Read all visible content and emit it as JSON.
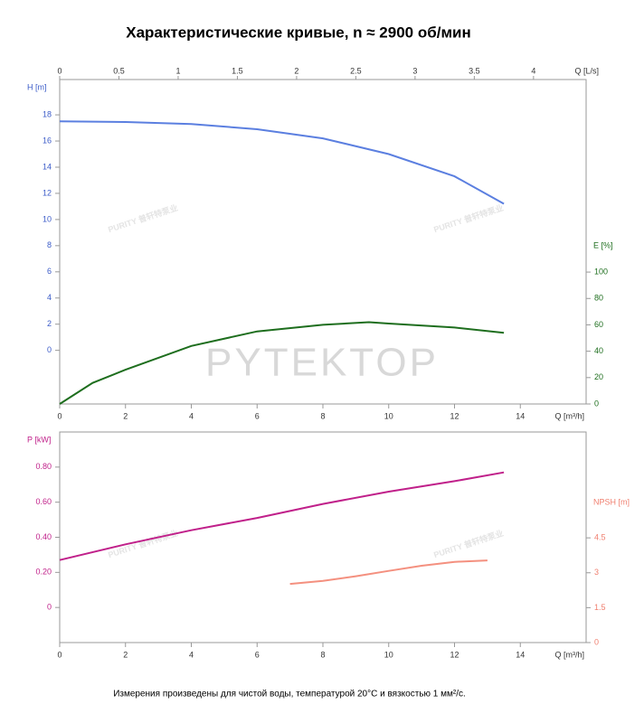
{
  "title": "Характеристические кривые, n ≈ 2900 об/мин",
  "note": "Измерения произведены для чистой воды, температурой 20°C и вязкостью 1 мм²/с.",
  "watermarks": [
    "PURITY 普轩特泵业",
    "PYTEKTOP"
  ],
  "chart_data": [
    {
      "type": "line",
      "xlabel": "Q [m³/h]",
      "x2label": "Q [L/s]",
      "ylabel": "H [m]",
      "y2label": "E [%]",
      "xlim": [
        0,
        16
      ],
      "xticks": [
        0,
        2,
        4,
        6,
        8,
        10,
        12,
        14
      ],
      "x2lim": [
        0,
        4.444
      ],
      "x2ticks": [
        0,
        0.5,
        1,
        1.5,
        2,
        2.5,
        3,
        3.5,
        4
      ],
      "ylim": [
        -4.1,
        20.7
      ],
      "yticks": [
        0,
        2,
        4,
        6,
        8,
        10,
        12,
        14,
        16,
        18
      ],
      "y2lim": [
        0,
        246
      ],
      "y2ticks": [
        0,
        20,
        40,
        60,
        80,
        100
      ],
      "series": [
        {
          "color": "#5b7fe0",
          "axis": "y",
          "x": [
            0,
            2,
            4,
            6,
            8,
            10,
            12,
            13.5
          ],
          "values": [
            17.5,
            17.45,
            17.3,
            16.9,
            16.2,
            15.0,
            13.3,
            11.2
          ]
        },
        {
          "color": "#1e6e1e",
          "axis": "y2",
          "x": [
            0,
            1,
            2,
            4,
            6,
            8,
            9.4,
            10,
            12,
            13.5
          ],
          "values": [
            0,
            16,
            26,
            44,
            55,
            60,
            62,
            61,
            58,
            54
          ]
        }
      ]
    },
    {
      "type": "line",
      "xlabel": "Q [m³/h]",
      "ylabel": "P [kW]",
      "y2label": "NPSH [m]",
      "xlim": [
        0,
        16
      ],
      "xticks": [
        0,
        2,
        4,
        6,
        8,
        10,
        12,
        14
      ],
      "ylim": [
        -0.2,
        1.0
      ],
      "yticks": [
        0,
        {
          "value": 0.2,
          "label": "0.20"
        },
        {
          "value": 0.4,
          "label": "0.40"
        },
        {
          "value": 0.6,
          "label": "0.60"
        },
        {
          "value": 0.8,
          "label": "0.80"
        }
      ],
      "y2lim": [
        0,
        9.05
      ],
      "y2ticks": [
        0,
        1.5,
        3,
        4.5
      ],
      "series": [
        {
          "color": "#c0208a",
          "axis": "y",
          "x": [
            0,
            2,
            4,
            6,
            8,
            10,
            12,
            13.5
          ],
          "values": [
            0.27,
            0.36,
            0.44,
            0.51,
            0.59,
            0.66,
            0.72,
            0.77
          ]
        },
        {
          "color": "#f4907f",
          "axis": "y2",
          "x": [
            7,
            8,
            9,
            10,
            11,
            12,
            13
          ],
          "values": [
            2.52,
            2.65,
            2.85,
            3.08,
            3.3,
            3.47,
            3.53
          ]
        }
      ]
    }
  ]
}
